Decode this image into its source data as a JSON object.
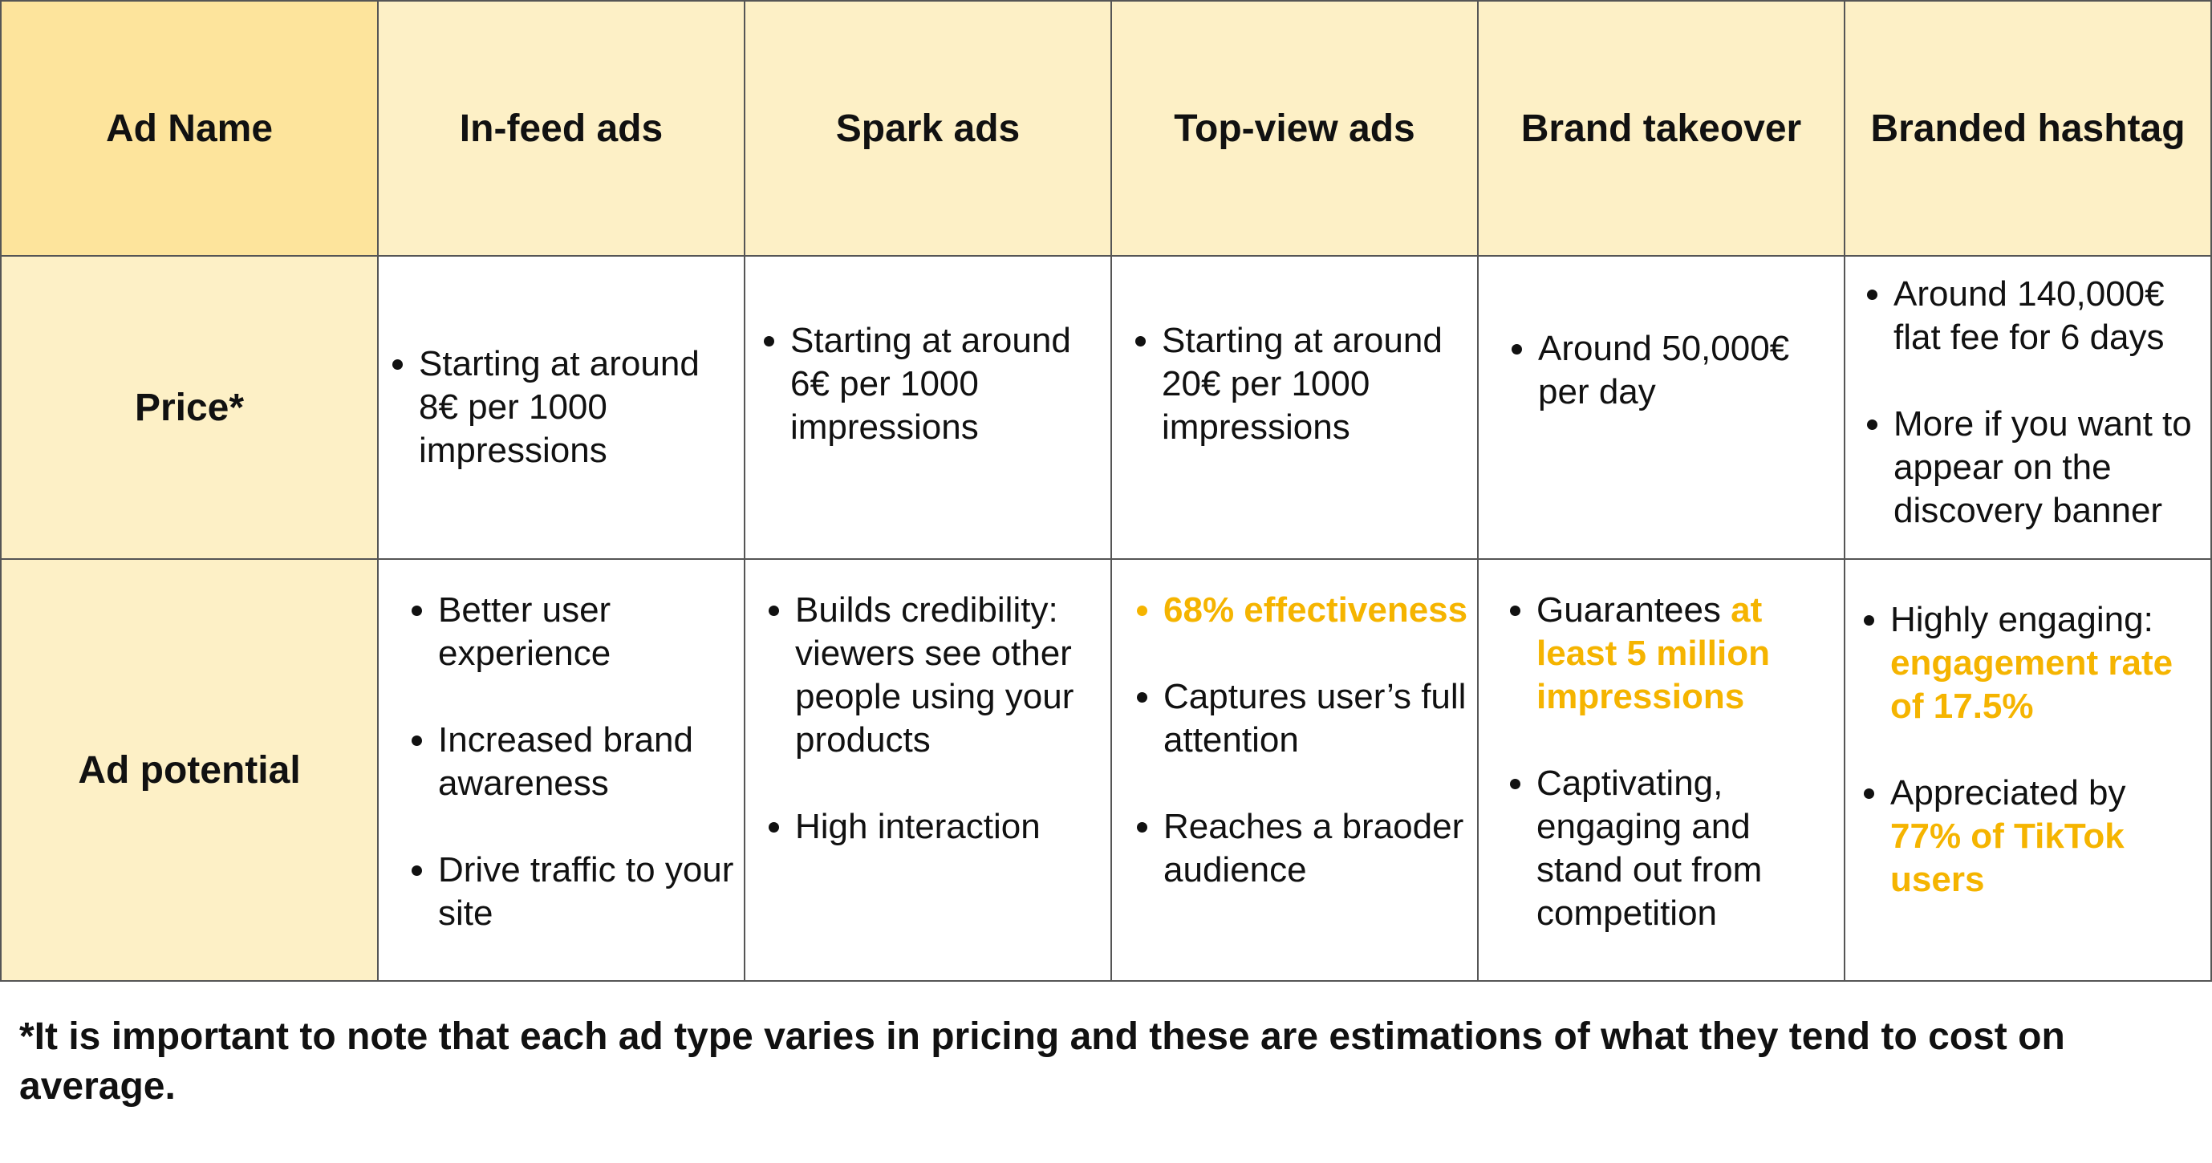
{
  "table": {
    "headers": [
      "Ad Name",
      "In-feed ads",
      "Spark ads",
      "Top-view ads",
      "Brand takeover",
      "Branded hashtag"
    ],
    "rows": [
      {
        "label": "Price*",
        "cells": [
          [
            "Starting at around 8€ per 1000 impressions"
          ],
          [
            "Starting at around 6€ per 1000 impressions"
          ],
          [
            "Starting at around 20€ per 1000 impressions"
          ],
          [
            "Around 50,000€ per day"
          ],
          [
            "Around 140,000€ flat fee for 6 days",
            "More if you want to appear on the discovery banner"
          ]
        ]
      },
      {
        "label": "Ad potential",
        "cells": [
          [
            "Better user experience",
            "Increased brand awareness",
            "Drive traffic to your site"
          ],
          [
            "Builds credibility: viewers see other people using your products",
            "High interaction"
          ],
          [
            "68% effectiveness",
            "Captures user’s full attention",
            "Reaches a braoder audience"
          ],
          [
            {
              "pre": "Guarantees ",
              "hl": "at least 5 million impressions"
            },
            "Captivating, engaging and stand out from competition"
          ],
          [
            {
              "pre": "Highly engaging: ",
              "hl": "engagement rate of 17.5%"
            },
            {
              "pre": "Appreciated by ",
              "hl": "77% of TikTok users"
            }
          ]
        ]
      }
    ]
  },
  "footnote": "*It is important to note that each ad type varies in pricing and these are estimations of what they tend to cost on average.",
  "colors": {
    "header_bg": "#fdf0c6",
    "corner_bg": "#fde49c",
    "highlight": "#f5b400",
    "border": "#555555"
  }
}
